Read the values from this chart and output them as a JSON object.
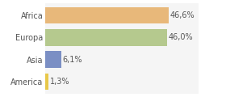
{
  "categories": [
    "America",
    "Asia",
    "Europa",
    "Africa"
  ],
  "values": [
    1.3,
    6.1,
    46.0,
    46.6
  ],
  "labels": [
    "1,3%",
    "6,1%",
    "46,0%",
    "46,6%"
  ],
  "bar_colors": [
    "#e8c84a",
    "#7b8fc4",
    "#b5c98e",
    "#e8b87a"
  ],
  "background_color": "#ffffff",
  "plot_bg_color": "#f5f5f5",
  "xlim": [
    0,
    58
  ],
  "bar_height": 0.75,
  "label_fontsize": 7.0,
  "tick_fontsize": 7.0,
  "label_color": "#555555",
  "tick_color": "#555555"
}
